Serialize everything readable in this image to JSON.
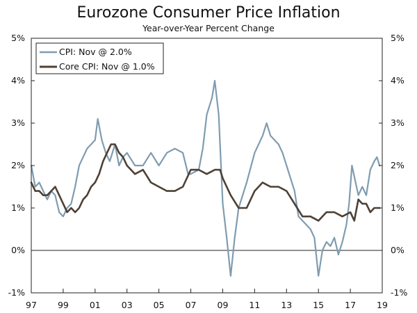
{
  "chart_data": {
    "type": "line",
    "title": "Eurozone Consumer Price Inflation",
    "subtitle": "Year-over-Year Percent Change",
    "xlabel": "",
    "ylabel": "",
    "xlim": [
      1997.0,
      2019.0
    ],
    "ylim": [
      -1,
      5
    ],
    "xticks": [
      "97",
      "99",
      "01",
      "03",
      "05",
      "07",
      "09",
      "11",
      "13",
      "15",
      "17",
      "19"
    ],
    "yticks_left": [
      "-1%",
      "0%",
      "1%",
      "2%",
      "3%",
      "4%",
      "5%"
    ],
    "yticks_right": [
      "-1%",
      "0%",
      "1%",
      "2%",
      "3%",
      "4%",
      "5%"
    ],
    "zero_line": true,
    "legend_position": "top-left",
    "series": [
      {
        "name": "CPI: Nov @ 2.0%",
        "color": "#7f9cb0",
        "x": [
          1997.0,
          1997.25,
          1997.5,
          1997.75,
          1998.0,
          1998.25,
          1998.5,
          1998.75,
          1999.0,
          1999.25,
          1999.5,
          1999.75,
          2000.0,
          2000.25,
          2000.5,
          2000.75,
          2001.0,
          2001.17,
          2001.42,
          2001.67,
          2001.92,
          2002.25,
          2002.5,
          2002.75,
          2003.0,
          2003.5,
          2004.0,
          2004.5,
          2005.0,
          2005.5,
          2006.0,
          2006.5,
          2006.83,
          2007.0,
          2007.5,
          2007.75,
          2008.0,
          2008.33,
          2008.5,
          2008.75,
          2009.0,
          2009.25,
          2009.5,
          2009.75,
          2010.0,
          2010.5,
          2011.0,
          2011.5,
          2011.75,
          2012.0,
          2012.5,
          2012.75,
          2013.0,
          2013.5,
          2013.75,
          2014.0,
          2014.5,
          2014.75,
          2015.0,
          2015.25,
          2015.5,
          2015.75,
          2016.0,
          2016.25,
          2016.5,
          2016.75,
          2016.92,
          2017.1,
          2017.5,
          2017.75,
          2018.0,
          2018.25,
          2018.5,
          2018.67,
          2018.83
        ],
        "values": [
          2.0,
          1.5,
          1.6,
          1.4,
          1.2,
          1.4,
          1.3,
          0.9,
          0.8,
          1.0,
          1.1,
          1.5,
          2.0,
          2.2,
          2.4,
          2.5,
          2.6,
          3.1,
          2.6,
          2.3,
          2.1,
          2.5,
          2.0,
          2.2,
          2.3,
          2.0,
          2.0,
          2.3,
          2.0,
          2.3,
          2.4,
          2.3,
          1.8,
          1.8,
          1.9,
          2.4,
          3.2,
          3.6,
          4.0,
          3.2,
          1.1,
          0.3,
          -0.6,
          0.3,
          1.0,
          1.6,
          2.3,
          2.7,
          3.0,
          2.7,
          2.5,
          2.3,
          2.0,
          1.4,
          0.8,
          0.7,
          0.5,
          0.3,
          -0.6,
          0.0,
          0.2,
          0.1,
          0.3,
          -0.1,
          0.2,
          0.6,
          1.1,
          2.0,
          1.3,
          1.5,
          1.3,
          1.9,
          2.1,
          2.2,
          2.0
        ]
      },
      {
        "name": "Core CPI: Nov @ 1.0%",
        "color": "#4d4035",
        "x": [
          1997.0,
          1997.25,
          1997.5,
          1997.75,
          1998.0,
          1998.25,
          1998.5,
          1998.75,
          1999.0,
          1999.25,
          1999.5,
          1999.75,
          2000.0,
          2000.25,
          2000.5,
          2000.75,
          2001.0,
          2001.25,
          2001.5,
          2001.75,
          2002.0,
          2002.25,
          2002.5,
          2002.75,
          2003.0,
          2003.5,
          2004.0,
          2004.5,
          2005.0,
          2005.5,
          2006.0,
          2006.5,
          2007.0,
          2007.5,
          2008.0,
          2008.5,
          2008.83,
          2009.0,
          2009.5,
          2010.0,
          2010.5,
          2011.0,
          2011.5,
          2012.0,
          2012.5,
          2013.0,
          2013.5,
          2014.0,
          2014.5,
          2015.0,
          2015.5,
          2016.0,
          2016.5,
          2017.0,
          2017.25,
          2017.5,
          2017.75,
          2018.0,
          2018.25,
          2018.5,
          2018.67,
          2018.83
        ],
        "values": [
          1.6,
          1.4,
          1.4,
          1.3,
          1.3,
          1.4,
          1.5,
          1.3,
          1.1,
          0.9,
          1.0,
          0.9,
          1.0,
          1.2,
          1.3,
          1.5,
          1.6,
          1.8,
          2.1,
          2.3,
          2.5,
          2.5,
          2.3,
          2.2,
          2.0,
          1.8,
          1.9,
          1.6,
          1.5,
          1.4,
          1.4,
          1.5,
          1.9,
          1.9,
          1.8,
          1.9,
          1.9,
          1.7,
          1.3,
          1.0,
          1.0,
          1.4,
          1.6,
          1.5,
          1.5,
          1.4,
          1.1,
          0.8,
          0.8,
          0.7,
          0.9,
          0.9,
          0.8,
          0.9,
          0.7,
          1.2,
          1.1,
          1.1,
          0.9,
          1.0,
          1.0,
          1.0
        ]
      }
    ]
  }
}
